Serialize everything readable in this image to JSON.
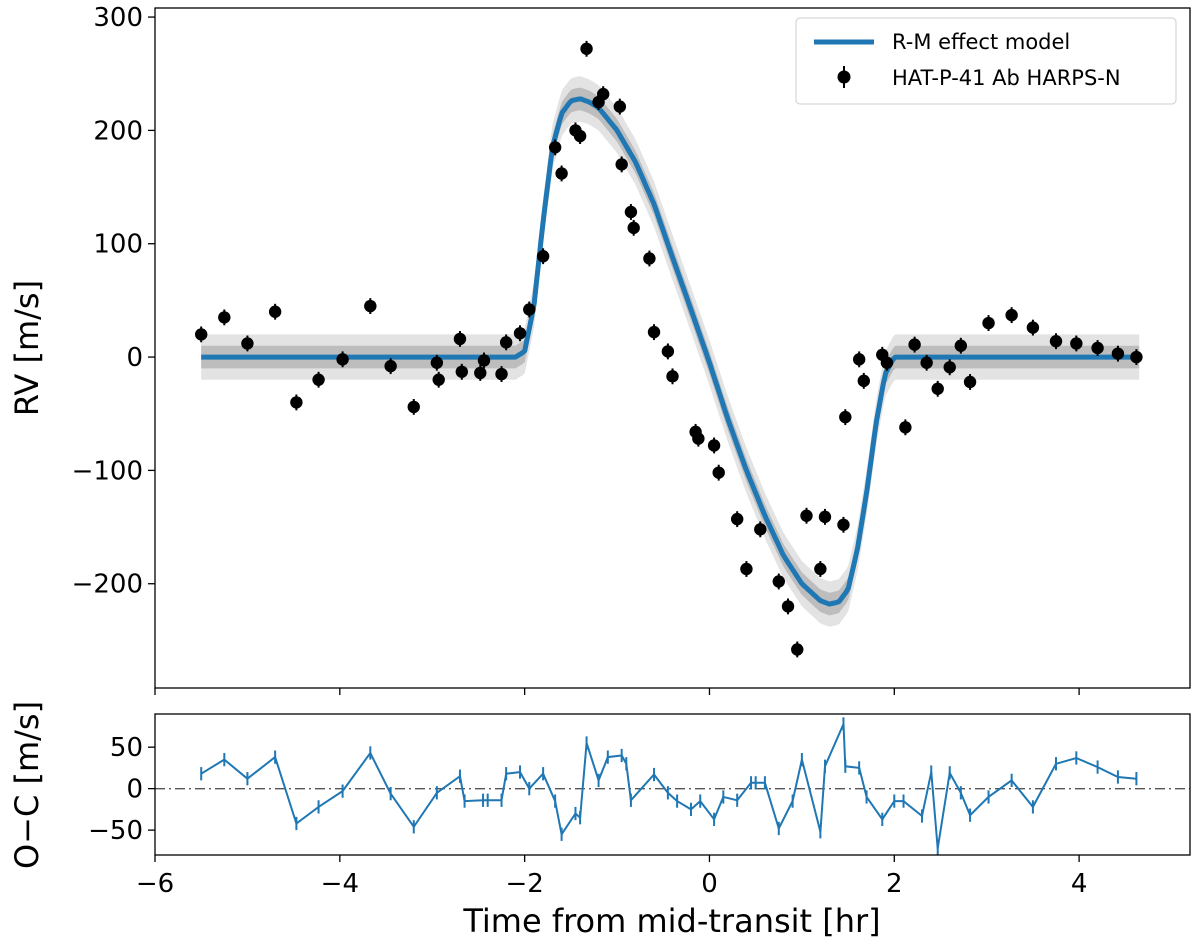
{
  "chart_data": [
    {
      "type": "scatter",
      "panel": "top",
      "title": "",
      "xlabel": "",
      "ylabel": "RV [m/s]",
      "xlim": [
        -6,
        5.2
      ],
      "ylim": [
        -292,
        308
      ],
      "xticks": [
        -6,
        -4,
        -2,
        0,
        2,
        4
      ],
      "yticks": [
        -200,
        -100,
        0,
        100,
        200,
        300
      ],
      "ytick_labels": [
        "−200",
        "−100",
        "0",
        "100",
        "200",
        "300"
      ],
      "legend": {
        "placement": "top-right",
        "entries": [
          "R-M effect model",
          "HAT-P-41 Ab HARPS-N"
        ]
      },
      "colors": {
        "model": "#1f77b4",
        "data": "#000000",
        "band_inner": "#bdbdbd",
        "band_outer": "#e3e3e3"
      },
      "series": [
        {
          "name": "R-M effect model",
          "kind": "line",
          "x": [
            -5.5,
            -2.1,
            -2.0,
            -1.9,
            -1.8,
            -1.7,
            -1.6,
            -1.5,
            -1.4,
            -1.3,
            -1.2,
            -1.0,
            -0.8,
            -0.6,
            -0.4,
            -0.2,
            0.0,
            0.2,
            0.4,
            0.6,
            0.8,
            1.0,
            1.2,
            1.3,
            1.4,
            1.5,
            1.6,
            1.7,
            1.8,
            1.9,
            2.0,
            4.65
          ],
          "y": [
            0,
            0,
            5,
            45,
            120,
            185,
            215,
            226,
            228,
            225,
            220,
            200,
            172,
            135,
            88,
            42,
            -5,
            -55,
            -100,
            -140,
            -175,
            -200,
            -215,
            -218,
            -216,
            -205,
            -170,
            -120,
            -60,
            -15,
            0,
            0
          ],
          "band_inner": 10,
          "band_outer": 20
        },
        {
          "name": "HAT-P-41 Ab HARPS-N",
          "kind": "errorbar",
          "x": [
            -5.5,
            -5.25,
            -5.0,
            -4.7,
            -4.47,
            -4.23,
            -3.97,
            -3.67,
            -3.45,
            -3.2,
            -2.95,
            -2.93,
            -2.7,
            -2.68,
            -2.48,
            -2.44,
            -2.25,
            -2.2,
            -2.05,
            -1.95,
            -1.8,
            -1.67,
            -1.6,
            -1.45,
            -1.4,
            -1.33,
            -1.2,
            -1.15,
            -0.97,
            -0.95,
            -0.85,
            -0.82,
            -0.65,
            -0.6,
            -0.45,
            -0.4,
            -0.15,
            -0.12,
            0.05,
            0.1,
            0.3,
            0.4,
            0.55,
            0.75,
            0.85,
            0.95,
            1.05,
            1.2,
            1.25,
            1.45,
            1.47,
            1.62,
            1.67,
            1.87,
            1.92,
            2.12,
            2.22,
            2.35,
            2.47,
            2.6,
            2.72,
            2.82,
            3.02,
            3.27,
            3.5,
            3.75,
            3.97,
            4.2,
            4.42,
            4.62
          ],
          "y": [
            20,
            35,
            12,
            40,
            -40,
            -20,
            -2,
            45,
            -8,
            -44,
            -5,
            -20,
            16,
            -13,
            -14,
            -3,
            -15,
            13,
            21,
            42,
            89,
            185,
            162,
            200,
            195,
            272,
            225,
            232,
            221,
            170,
            128,
            114,
            87,
            22,
            5,
            -17,
            -66,
            -72,
            -78,
            -102,
            -143,
            -187,
            -152,
            -198,
            -220,
            -258,
            -140,
            -187,
            -141,
            -148,
            -53,
            -2,
            -21,
            2,
            -5,
            -62,
            11,
            -5,
            -28,
            -9,
            10,
            -22,
            30,
            37,
            26,
            14,
            12,
            8,
            3,
            0
          ],
          "yerr": 7,
          "note": "point pairs listed as [x, y] in drawing order in the script"
        }
      ]
    },
    {
      "type": "line",
      "panel": "bottom",
      "xlabel": "Time from mid-transit [hr]",
      "ylabel": "O−C [m/s]",
      "xlim": [
        -6,
        5.2
      ],
      "ylim": [
        -80,
        90
      ],
      "xticks": [
        -6,
        -4,
        -2,
        0,
        2,
        4
      ],
      "xtick_labels": [
        "−6",
        "−4",
        "−2",
        "0",
        "2",
        "4"
      ],
      "yticks": [
        -50,
        0,
        50
      ],
      "ytick_labels": [
        "−50",
        "0",
        "50"
      ],
      "reference_line": 0,
      "colors": {
        "series": "#1f77b4",
        "reference": "#555555"
      },
      "series": [
        {
          "name": "residuals",
          "x": [
            -5.5,
            -5.25,
            -5.0,
            -4.7,
            -4.47,
            -4.23,
            -3.97,
            -3.67,
            -3.45,
            -3.2,
            -2.95,
            -2.7,
            -2.65,
            -2.45,
            -2.4,
            -2.25,
            -2.2,
            -2.05,
            -1.95,
            -1.8,
            -1.67,
            -1.6,
            -1.45,
            -1.4,
            -1.33,
            -1.2,
            -1.1,
            -0.95,
            -0.9,
            -0.85,
            -0.6,
            -0.45,
            -0.35,
            -0.2,
            -0.1,
            0.05,
            0.15,
            0.3,
            0.45,
            0.5,
            0.6,
            0.75,
            0.9,
            1.0,
            1.2,
            1.25,
            1.45,
            1.47,
            1.62,
            1.7,
            1.87,
            2.0,
            2.1,
            2.3,
            2.4,
            2.47,
            2.6,
            2.72,
            2.82,
            3.02,
            3.27,
            3.5,
            3.75,
            3.97,
            4.2,
            4.42,
            4.62
          ],
          "y": [
            18,
            35,
            12,
            38,
            -42,
            -22,
            -3,
            43,
            -6,
            -46,
            -5,
            15,
            -15,
            -14,
            -14,
            -14,
            18,
            20,
            0,
            18,
            -15,
            -55,
            -30,
            -35,
            55,
            10,
            38,
            40,
            30,
            -14,
            17,
            -5,
            -15,
            -25,
            -15,
            -37,
            -10,
            -14,
            7,
            7,
            7,
            -48,
            -15,
            35,
            -52,
            27,
            78,
            27,
            25,
            -10,
            -37,
            -15,
            -15,
            -33,
            20,
            -72,
            19,
            -5,
            -32,
            -10,
            10,
            -22,
            30,
            37,
            26,
            14,
            12
          ],
          "yerr": 8
        }
      ]
    }
  ]
}
